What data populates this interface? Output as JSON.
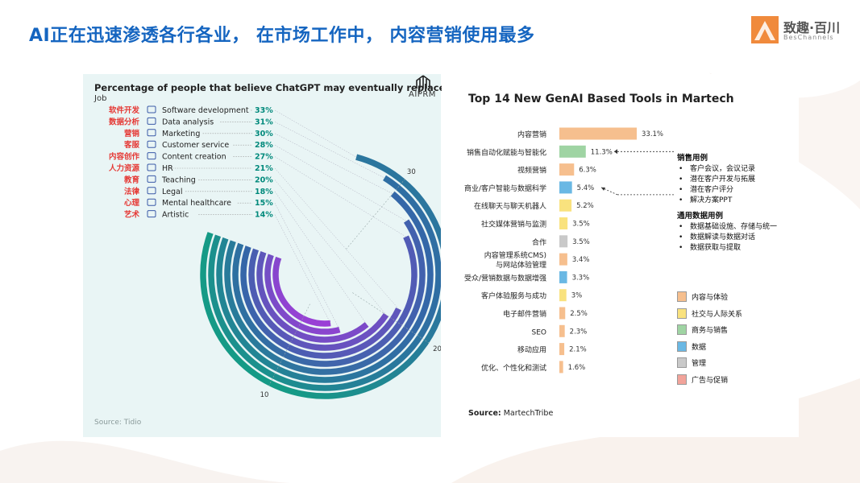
{
  "slide": {
    "title": "AI正在迅速渗透各行各业， 在市场工作中， 内容营销使用最多"
  },
  "logo": {
    "name_cn": "致趣·百川",
    "name_en": "BesChannels"
  },
  "colors": {
    "title": "#1565c0",
    "label_cn": "#e53935",
    "percent": "#00897b",
    "bar_content": "#f6bf8e",
    "bar_social": "#f9e27e",
    "bar_business": "#9fd4a3",
    "bar_data": "#6ab8e4",
    "bar_management": "#c9c9c9",
    "bar_ads": "#f2a39a"
  },
  "left_chart": {
    "brand_label": "AIPRM",
    "source": "Source: Tidio"
  },
  "chart_data": [
    {
      "type": "bar",
      "orientation": "radial",
      "title": "Percentage of people that believe ChatGPT may eventually replace this job",
      "subtitle": "Job",
      "categories": [
        "Software development",
        "Data analysis",
        "Marketing",
        "Customer service",
        "Content creation",
        "HR",
        "Teaching",
        "Legal",
        "Mental healthcare",
        "Artistic"
      ],
      "labels_cn": [
        "软件开发",
        "数据分析",
        "营销",
        "客服",
        "内容创作",
        "人力资源",
        "教育",
        "法律",
        "心理",
        "艺术"
      ],
      "icons": [
        "monitor-icon",
        "pie-chart-icon",
        "megaphone-icon",
        "phone-icon",
        "compass-icon",
        "person-icon",
        "graduation-cap-icon",
        "pen-icon",
        "chat-bubbles-icon",
        "image-icon"
      ],
      "values": [
        33,
        31,
        30,
        28,
        27,
        21,
        20,
        18,
        15,
        14
      ],
      "value_labels": [
        "33%",
        "31%",
        "30%",
        "28%",
        "27%",
        "21%",
        "20%",
        "18%",
        "15%",
        "14%"
      ],
      "axis_ticks": [
        10,
        20,
        30
      ],
      "axis_tick_labels": [
        "10",
        "20",
        "30"
      ],
      "value_max": 33,
      "color_gradient": [
        "#159a86",
        "#3466a8",
        "#9b3fd6"
      ]
    },
    {
      "type": "bar",
      "orientation": "horizontal",
      "title": "Top 14 New GenAI Based Tools in Martech",
      "source_label": "Source:",
      "source_name": "MartechTribe",
      "categories": [
        "内容营销",
        "销售自动化赋能与智能化",
        "视频营销",
        "商业/客户智能与数据科学",
        "在线聊天与聊天机器人",
        "社交媒体营销与监测",
        "合作",
        "内容管理系统CMS)\n与网站体验管理",
        "受众/营销数据与数据增强",
        "客户体验服务与成功",
        "电子邮件营销",
        "SEO",
        "移动应用",
        "优化、个性化和测试"
      ],
      "values": [
        33.1,
        11.3,
        6.3,
        5.4,
        5.2,
        3.5,
        3.5,
        3.4,
        3.3,
        3,
        2.5,
        2.3,
        2.1,
        1.6
      ],
      "value_labels": [
        "33.1%",
        "11.3%",
        "6.3%",
        "5.4%",
        "5.2%",
        "3.5%",
        "3.5%",
        "3.4%",
        "3.3%",
        "3%",
        "2.5%",
        "2.3%",
        "2.1%",
        "1.6%"
      ],
      "group": [
        "content",
        "business",
        "content",
        "data",
        "social",
        "social",
        "management",
        "content",
        "data",
        "social",
        "content",
        "content",
        "content",
        "content"
      ],
      "legend": [
        {
          "key": "content",
          "label": "内容与体验",
          "color": "#f6bf8e"
        },
        {
          "key": "social",
          "label": "社交与人际关系",
          "color": "#f9e27e"
        },
        {
          "key": "business",
          "label": "商务与销售",
          "color": "#9fd4a3"
        },
        {
          "key": "data",
          "label": "数据",
          "color": "#6ab8e4"
        },
        {
          "key": "management",
          "label": "管理",
          "color": "#c9c9c9"
        },
        {
          "key": "ads",
          "label": "广告与促销",
          "color": "#f2a39a"
        }
      ],
      "value_max": 33.1
    }
  ],
  "use_cases": {
    "sales_title": "销售用例",
    "sales_items": [
      "客户会议，会议记录",
      "潜在客户开发与拓展",
      "潜在客户评分",
      "解决方案PPT"
    ],
    "data_title": "通用数据用例",
    "data_items": [
      "数据基础设施、存储与统一",
      "数据解读与数据对话",
      "数据获取与提取"
    ]
  }
}
